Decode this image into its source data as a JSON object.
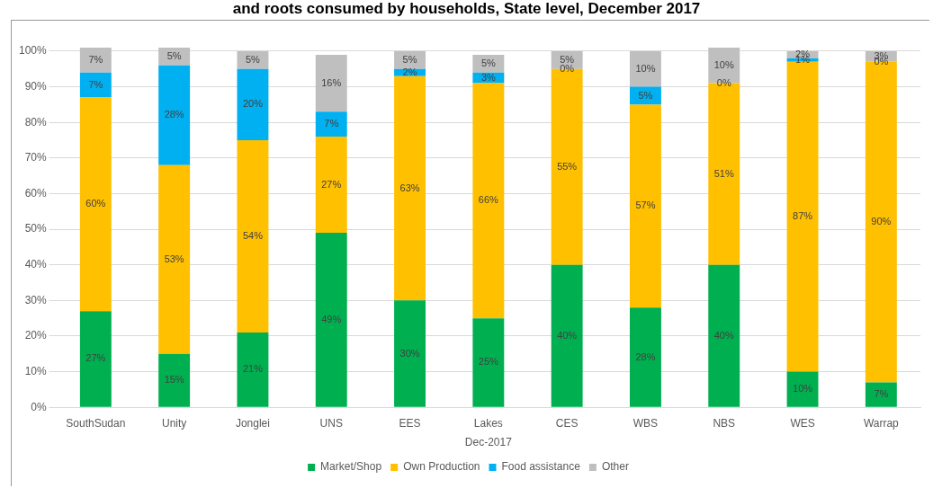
{
  "chart_data": {
    "type": "bar",
    "stacked": true,
    "title": "and roots consumed by households, State level, December 2017",
    "xlabel": "Dec-2017",
    "categories": [
      "SouthSudan",
      "Unity",
      "Jonglei",
      "UNS",
      "EES",
      "Lakes",
      "CES",
      "WBS",
      "NBS",
      "WES",
      "Warrap"
    ],
    "series": [
      {
        "name": "Market/Shop",
        "color": "#00b050",
        "values": [
          27,
          15,
          21,
          49,
          30,
          25,
          40,
          28,
          40,
          10,
          7
        ],
        "value_labels": [
          "27%",
          "15%",
          "21%",
          "49%",
          "30%",
          "25%",
          "40%",
          "28%",
          "40%",
          "10%",
          "7%"
        ]
      },
      {
        "name": "Own Production",
        "color": "#ffc000",
        "values": [
          60,
          53,
          54,
          27,
          63,
          66,
          55,
          57,
          51,
          87,
          90
        ],
        "value_labels": [
          "60%",
          "53%",
          "54%",
          "27%",
          "63%",
          "66%",
          "55%",
          "57%",
          "51%",
          "87%",
          "90%"
        ]
      },
      {
        "name": "Food assistance",
        "color": "#00b0f0",
        "values": [
          7,
          28,
          20,
          7,
          2,
          3,
          0,
          5,
          0,
          1,
          0
        ],
        "value_labels": [
          "7%",
          "28%",
          "20%",
          "7%",
          "2%",
          "3%",
          "0%",
          "5%",
          "0%",
          "1%",
          "0%"
        ]
      },
      {
        "name": "Other",
        "color": "#bfbfbf",
        "values": [
          7,
          5,
          5,
          16,
          5,
          5,
          5,
          10,
          10,
          2,
          3
        ],
        "value_labels": [
          "7%",
          "5%",
          "5%",
          "16%",
          "5%",
          "5%",
          "5%",
          "10%",
          "10%",
          "2%",
          "3%"
        ]
      }
    ],
    "ylim": [
      0,
      101
    ],
    "yticks": [
      {
        "value": 0,
        "label": "0%"
      },
      {
        "value": 10,
        "label": "10%"
      },
      {
        "value": 20,
        "label": "20%"
      },
      {
        "value": 30,
        "label": "30%"
      },
      {
        "value": 40,
        "label": "40%"
      },
      {
        "value": 50,
        "label": "50%"
      },
      {
        "value": 60,
        "label": "60%"
      },
      {
        "value": 70,
        "label": "70%"
      },
      {
        "value": 80,
        "label": "80%"
      },
      {
        "value": 90,
        "label": "90%"
      },
      {
        "value": 100,
        "label": "100%"
      }
    ],
    "grid": "y",
    "legend": "bottom"
  }
}
